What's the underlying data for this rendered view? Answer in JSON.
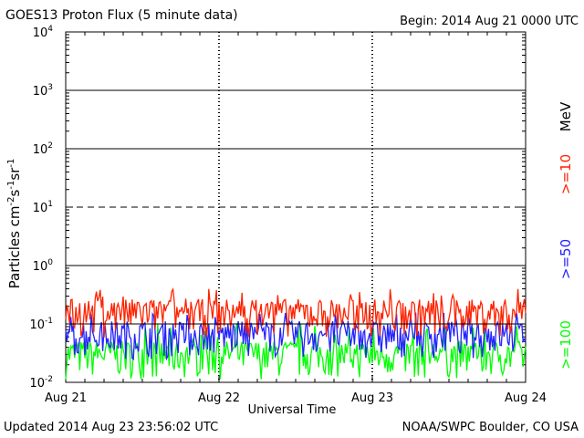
{
  "header": {
    "title": "GOES13 Proton Flux (5 minute data)",
    "begin": "Begin: 2014 Aug 21 0000 UTC"
  },
  "footer": {
    "updated": "Updated 2014 Aug 23 23:56:02 UTC",
    "credit": "NOAA/SWPC Boulder, CO USA"
  },
  "chart_data": {
    "type": "line",
    "title": "GOES13 Proton Flux (5 minute data)",
    "xlabel": "Universal Time",
    "ylabel_parts": [
      "Particles cm",
      "-2",
      "s",
      "-1",
      "sr",
      "-1"
    ],
    "x_ticks": [
      "Aug 21",
      "Aug 22",
      "Aug 23",
      "Aug 24"
    ],
    "y_ticks": [
      {
        "base": "10",
        "exp": "-2",
        "value": 0.01
      },
      {
        "base": "10",
        "exp": "-1",
        "value": 0.1
      },
      {
        "base": "10",
        "exp": "0",
        "value": 1
      },
      {
        "base": "10",
        "exp": "1",
        "value": 10
      },
      {
        "base": "10",
        "exp": "2",
        "value": 100
      },
      {
        "base": "10",
        "exp": "3",
        "value": 1000
      },
      {
        "base": "10",
        "exp": "4",
        "value": 10000
      }
    ],
    "y_scale": "log",
    "ylim": [
      0.01,
      10000
    ],
    "grid": "horizontal lines at 1, 100, 1000; dashed at 10; threshold at 0.1",
    "energy_unit": "MeV",
    "series": [
      {
        "name": ">=10",
        "color": "#ff2200",
        "baseline": 0.13,
        "spread": 0.18,
        "spike": 0.32
      },
      {
        "name": ">=50",
        "color": "#2222ff",
        "baseline": 0.055,
        "spread": 0.12,
        "spike": 0.12
      },
      {
        "name": ">=100",
        "color": "#00ff00",
        "baseline": 0.025,
        "spread": 0.06,
        "spike": 0.08
      }
    ]
  }
}
